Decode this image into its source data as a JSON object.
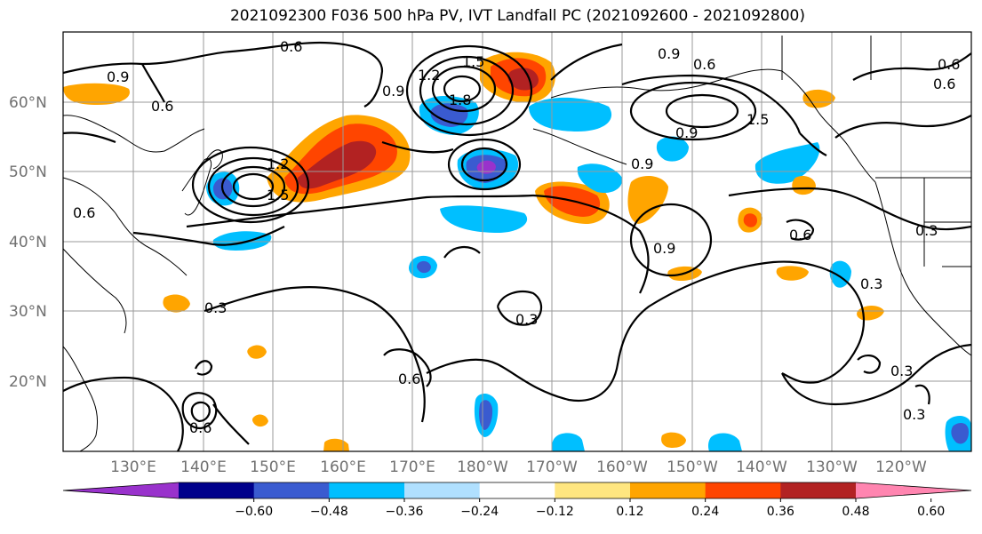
{
  "title": "2021092300 F036 500 hPa PV, IVT Landfall PC (2021092600 - 2021092800)",
  "lat_labels": [
    "60°N",
    "50°N",
    "40°N",
    "30°N",
    "20°N"
  ],
  "lon_labels": [
    "130°E",
    "140°E",
    "150°E",
    "160°E",
    "170°E",
    "180°W",
    "170°W",
    "160°W",
    "150°W",
    "140°W",
    "130°W",
    "120°W"
  ],
  "colorbar": {
    "colors": [
      "#9932cc",
      "#00008b",
      "#3a5bd0",
      "#00bfff",
      "#b0e0ff",
      "#ffffff",
      "#ffe680",
      "#ffa500",
      "#ff4500",
      "#b22222",
      "#ff85b0"
    ],
    "tick_labels": [
      "−0.60",
      "−0.48",
      "−0.36",
      "−0.24",
      "−0.12",
      "0.12",
      "0.24",
      "0.36",
      "0.48",
      "0.60"
    ]
  },
  "contour_labels": [
    "0.6",
    "0.9",
    "0.9",
    "1.2",
    "1.5",
    "1.8",
    "0.6",
    "0.6",
    "0.9",
    "1.5",
    "0.9",
    "1.2",
    "1.5",
    "0.9",
    "0.6",
    "0.6",
    "0.9",
    "0.3",
    "0.3",
    "0.3",
    "0.6",
    "0.6",
    "0.3",
    "0.3",
    "0.3",
    "0.6",
    "0.6"
  ]
}
